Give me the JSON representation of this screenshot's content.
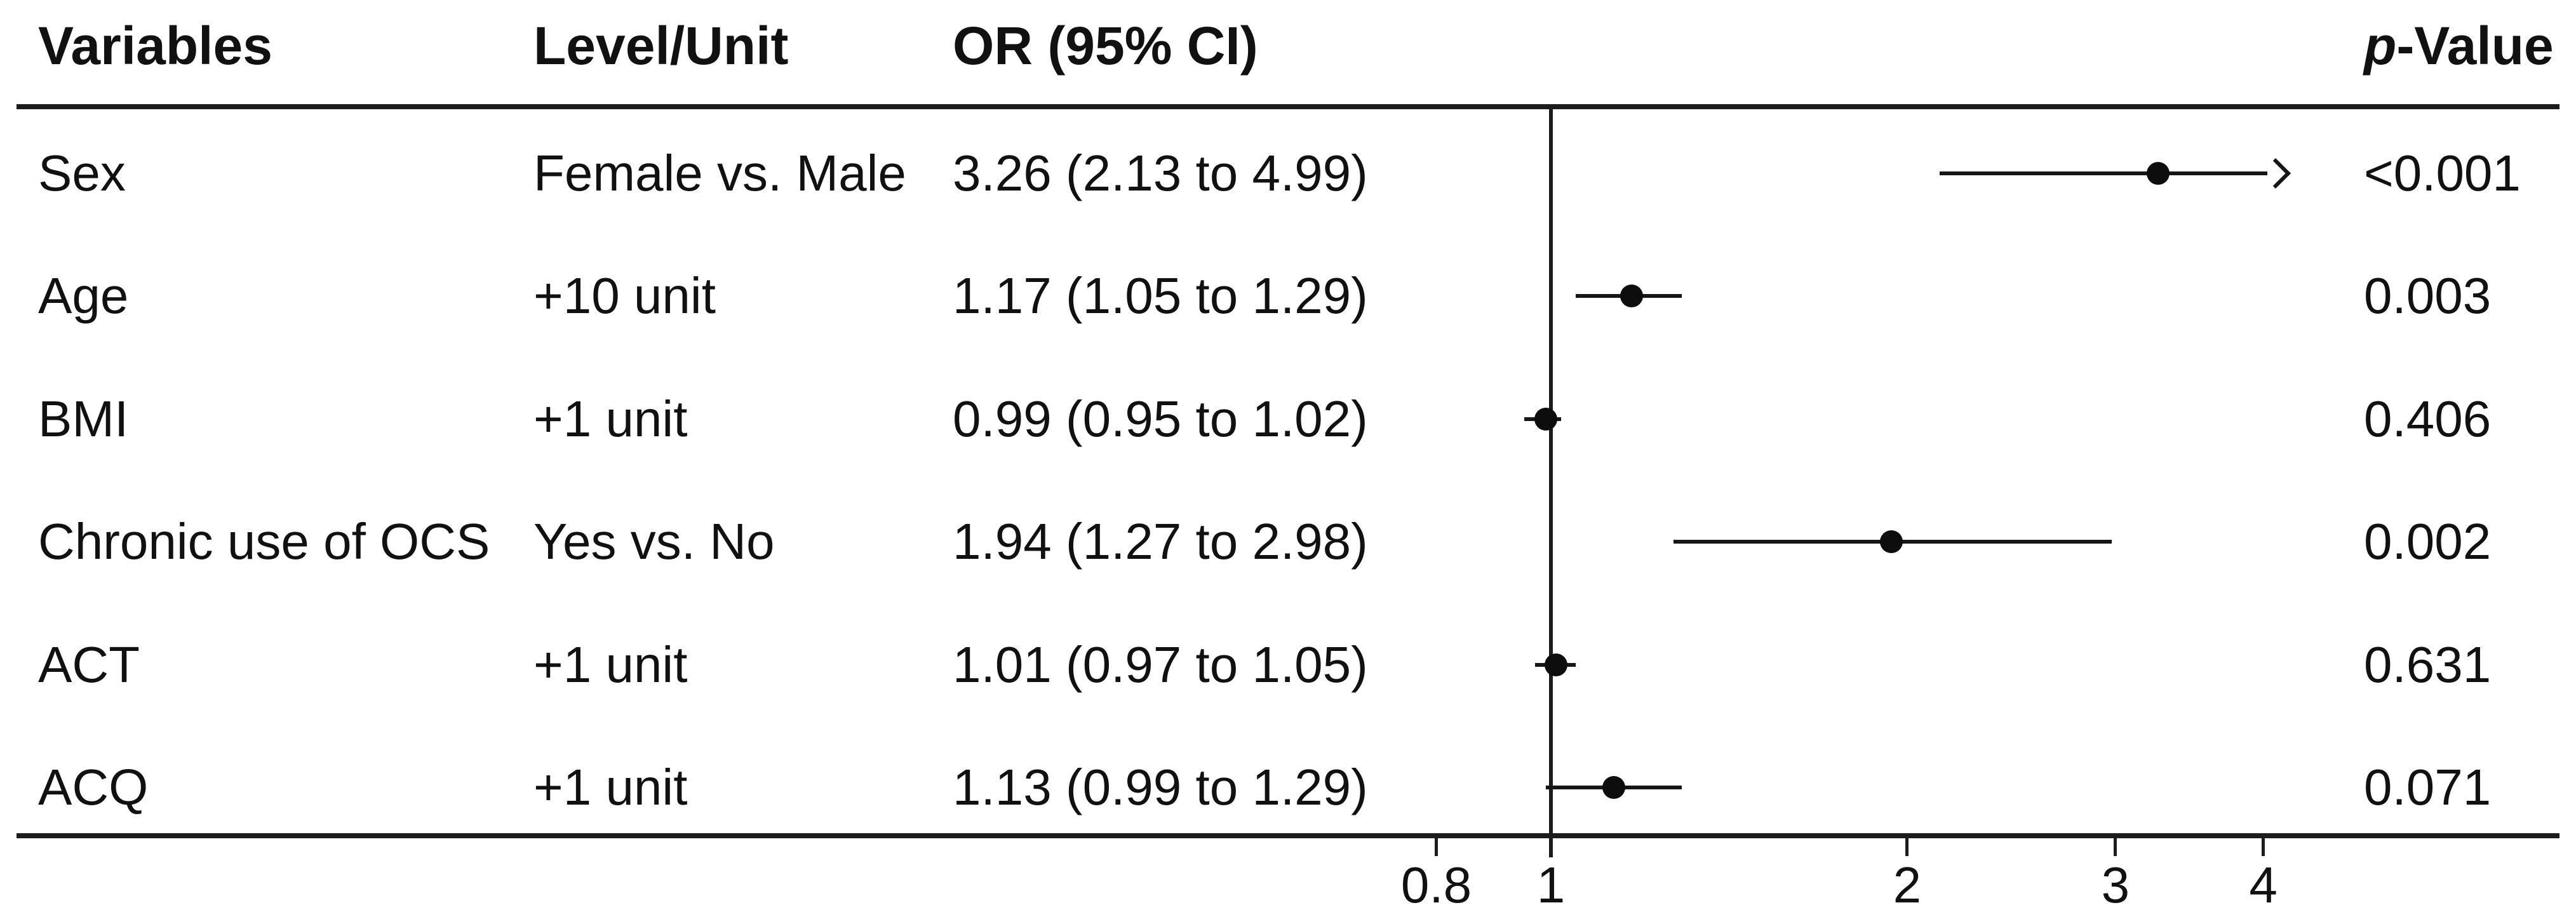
{
  "figure": {
    "headers": {
      "variables": "Variables",
      "level_unit": "Level/Unit",
      "or_ci": "OR (95% CI)",
      "p_value_prefix": "p",
      "p_value_suffix": "-Value"
    },
    "rows": [
      {
        "variable": "Sex",
        "level": "Female vs. Male",
        "or_ci": "3.26 (2.13 to 4.99)",
        "p": "<0.001"
      },
      {
        "variable": "Age",
        "level": "+10 unit",
        "or_ci": "1.17 (1.05 to 1.29)",
        "p": "0.003"
      },
      {
        "variable": "BMI",
        "level": "+1 unit",
        "or_ci": "0.99 (0.95 to 1.02)",
        "p": "0.406"
      },
      {
        "variable": "Chronic use of OCS",
        "level": "Yes vs. No",
        "or_ci": "1.94 (1.27 to 2.98)",
        "p": "0.002"
      },
      {
        "variable": "ACT",
        "level": "+1 unit",
        "or_ci": "1.01 (0.97 to 1.05)",
        "p": "0.631"
      },
      {
        "variable": "ACQ",
        "level": "+1 unit",
        "or_ci": "1.13 (0.99 to 1.29)",
        "p": "0.071"
      }
    ],
    "colors": {
      "ink": "#111111",
      "background": "#ffffff"
    }
  },
  "chart_data": {
    "type": "forest",
    "title": "",
    "xlabel": "",
    "xscale": "log",
    "xticks": [
      0.8,
      1,
      2,
      3,
      4
    ],
    "xtick_labels": [
      "0.8",
      "1",
      "2",
      "3",
      "4"
    ],
    "ref_line": 1.0,
    "xlim": [
      0.62,
      4.3
    ],
    "rows": [
      {
        "label": "Sex",
        "or": 3.26,
        "lo": 2.13,
        "hi": 4.99,
        "hi_clipped": true,
        "p": "<0.001"
      },
      {
        "label": "Age",
        "or": 1.17,
        "lo": 1.05,
        "hi": 1.29,
        "hi_clipped": false,
        "p": "0.003"
      },
      {
        "label": "BMI",
        "or": 0.99,
        "lo": 0.95,
        "hi": 1.02,
        "hi_clipped": false,
        "p": "0.406"
      },
      {
        "label": "Chronic use of OCS",
        "or": 1.94,
        "lo": 1.27,
        "hi": 2.98,
        "hi_clipped": false,
        "p": "0.002"
      },
      {
        "label": "ACT",
        "or": 1.01,
        "lo": 0.97,
        "hi": 1.05,
        "hi_clipped": false,
        "p": "0.631"
      },
      {
        "label": "ACQ",
        "or": 1.13,
        "lo": 0.99,
        "hi": 1.29,
        "hi_clipped": false,
        "p": "0.071"
      }
    ]
  }
}
